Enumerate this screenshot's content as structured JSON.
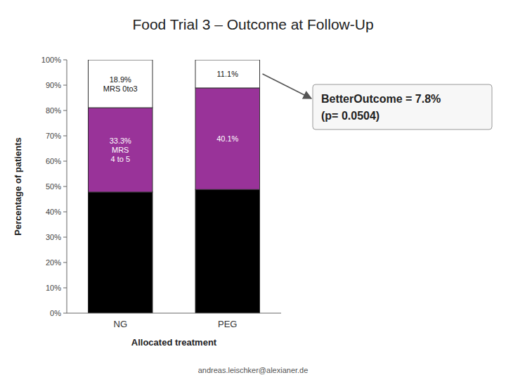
{
  "chart_data": {
    "type": "bar",
    "stacked": true,
    "grid": false,
    "title": "Food Trial 3 – Outcome at Follow-Up",
    "x_label": "Allocated treatment",
    "y_label": "Percentage of patients",
    "categories": [
      "NG",
      "PEG"
    ],
    "series": [
      {
        "color": "#000000",
        "values": [
          47.8,
          48.8
        ]
      },
      {
        "color": "#993399",
        "values": [
          33.3,
          40.1
        ],
        "value_labels": [
          "33.3%\nMRS\n4 to 5",
          "40.1%"
        ]
      },
      {
        "color": "#FFFFFF",
        "values": [
          18.9,
          11.1
        ],
        "value_labels": [
          "18.9%\nMRS 0to3",
          "11.1%"
        ]
      }
    ],
    "ylim": [
      0,
      100
    ],
    "yticks": [
      {
        "value": 0,
        "label": "0%"
      },
      {
        "value": 10,
        "label": "10%"
      },
      {
        "value": 20,
        "label": "20%"
      },
      {
        "value": 30,
        "label": "30%"
      },
      {
        "value": 40,
        "label": "40%"
      },
      {
        "value": 50,
        "label": "50%"
      },
      {
        "value": 60,
        "label": "60%"
      },
      {
        "value": 70,
        "label": "70%"
      },
      {
        "value": 80,
        "label": "80%"
      },
      {
        "value": 90,
        "label": "90%"
      },
      {
        "value": 100,
        "label": "100%"
      }
    ],
    "annotations": [
      "BetterOutcome = 7.8%",
      "(p= 0.0504)"
    ],
    "footer": "andreas.leischker@alexianer.de"
  }
}
